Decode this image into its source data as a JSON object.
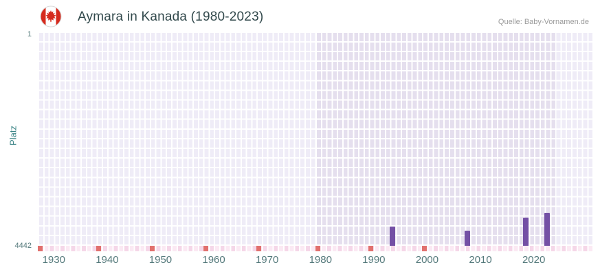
{
  "header": {
    "title": "Aymara in Kanada (1980-2023)",
    "source": "Quelle: Baby-Vornamen.de",
    "flag_icon": "canada-flag",
    "flag_red": "#d52b1e"
  },
  "chart_data": {
    "type": "bar",
    "title": "Aymara in Kanada (1980-2023)",
    "xlabel": "",
    "ylabel": "Platz",
    "y_axis": {
      "top_label": "1",
      "bottom_label": "4442",
      "min": 1,
      "max": 4442,
      "inverted": true
    },
    "x_range": [
      1927,
      2031
    ],
    "x_ticks": [
      1930,
      1940,
      1950,
      1960,
      1970,
      1980,
      1990,
      2000,
      2010,
      2020
    ],
    "data_region_years": [
      1979,
      2024
    ],
    "grid": true,
    "legend_position": "none",
    "series": [
      {
        "name": "Platz",
        "points": [
          {
            "year": 1993,
            "rank": 4040
          },
          {
            "year": 2007,
            "rank": 4120
          },
          {
            "year": 2018,
            "rank": 3850
          },
          {
            "year": 2022,
            "rank": 3750
          }
        ]
      }
    ],
    "unranked_strip": {
      "marker_years": [
        1927,
        1938,
        1948,
        1958,
        1968,
        1979,
        1989,
        1999
      ]
    },
    "colors": {
      "bar": "#7450a5",
      "plot_bg": "#efecf7",
      "data_region_bg": "#e5dfee",
      "grid": "#ffffff",
      "strip_bg": "#fbe9f3",
      "strip_alt": "#f5d7e8",
      "strip_marker": "#e1706d",
      "axis_text": "#54797b",
      "title_text": "#32494c",
      "source_text": "#9b9b9b"
    }
  }
}
